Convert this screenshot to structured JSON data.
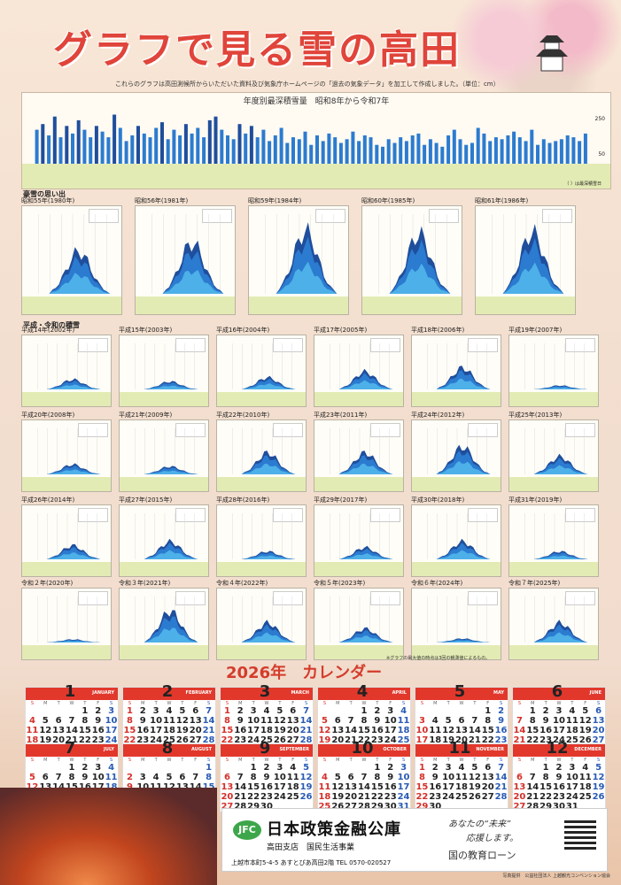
{
  "title": "グラフで見る雪の高田",
  "intro": "これらのグラフは高田測候所からいただいた資料及び気象庁ホームページの「過去の気象データ」を加工して作成しました。（単位：cm）",
  "annual": {
    "title": "年度別最深積雪量　昭和8年から令和7年",
    "tick_250": "250",
    "tick_50": "50",
    "legend": "（ ）は最深積雪日",
    "values": [
      180,
      210,
      150,
      250,
      140,
      200,
      160,
      230,
      180,
      140,
      200,
      170,
      140,
      260,
      190,
      120,
      150,
      200,
      160,
      140,
      190,
      220,
      130,
      180,
      150,
      210,
      160,
      190,
      140,
      230,
      250,
      180,
      150,
      130,
      210,
      160,
      200,
      140,
      180,
      120,
      150,
      190,
      110,
      140,
      130,
      170,
      100,
      150,
      120,
      160,
      140,
      110,
      130,
      170,
      120,
      150,
      140,
      100,
      90,
      130,
      110,
      140,
      120,
      150,
      160,
      100,
      130,
      110,
      90,
      150,
      180,
      130,
      100,
      110,
      190,
      160,
      120,
      140,
      130,
      150,
      170,
      140,
      120,
      180,
      100,
      130,
      110,
      120,
      130,
      150,
      140,
      120,
      160
    ]
  },
  "sections": {
    "heavy": "豪雪の思い出",
    "recent": "平成・令和の積雪"
  },
  "panels": [
    {
      "label": "昭和55年(1980年)",
      "peak": 0.62
    },
    {
      "label": "昭和56年(1981年)",
      "peak": 0.75
    },
    {
      "label": "昭和59年(1984年)",
      "peak": 0.92
    },
    {
      "label": "昭和60年(1985年)",
      "peak": 0.88
    },
    {
      "label": "昭和61年(1986年)",
      "peak": 0.9
    },
    {
      "label": "平成14年(2002年)",
      "peak": 0.25
    },
    {
      "label": "平成15年(2003年)",
      "peak": 0.2
    },
    {
      "label": "平成16年(2004年)",
      "peak": 0.3
    },
    {
      "label": "平成17年(2005年)",
      "peak": 0.45
    },
    {
      "label": "平成18年(2006年)",
      "peak": 0.55
    },
    {
      "label": "平成19年(2007年)",
      "peak": 0.1
    },
    {
      "label": "平成20年(2008年)",
      "peak": 0.25
    },
    {
      "label": "平成21年(2009年)",
      "peak": 0.2
    },
    {
      "label": "平成22年(2010年)",
      "peak": 0.55
    },
    {
      "label": "平成23年(2011年)",
      "peak": 0.55
    },
    {
      "label": "平成24年(2012年)",
      "peak": 0.7
    },
    {
      "label": "平成25年(2013年)",
      "peak": 0.45
    },
    {
      "label": "平成26年(2014年)",
      "peak": 0.35
    },
    {
      "label": "平成27年(2015年)",
      "peak": 0.45
    },
    {
      "label": "平成28年(2016年)",
      "peak": 0.2
    },
    {
      "label": "平成29年(2017年)",
      "peak": 0.3
    },
    {
      "label": "平成30年(2018年)",
      "peak": 0.45
    },
    {
      "label": "平成31年(2019年)",
      "peak": 0.2
    },
    {
      "label": "令和２年(2020年)",
      "peak": 0.08
    },
    {
      "label": "令和３年(2021年)",
      "peak": 0.8
    },
    {
      "label": "令和４年(2022年)",
      "peak": 0.5
    },
    {
      "label": "令和５年(2023年)",
      "peak": 0.35
    },
    {
      "label": "令和６年(2024年)",
      "peak": 0.1
    },
    {
      "label": "令和７年(2025年)",
      "peak": 0.5
    }
  ],
  "calendar": {
    "title": "2026年　カレンダー",
    "note": "※グラフの最大値の時点は3回の観測値によるもの。",
    "weekdays": [
      "S",
      "M",
      "T",
      "W",
      "T",
      "F",
      "S"
    ],
    "months": [
      {
        "num": "1",
        "en": "JANUARY",
        "start": 4,
        "days": 31
      },
      {
        "num": "2",
        "en": "FEBRUARY",
        "start": 0,
        "days": 28
      },
      {
        "num": "3",
        "en": "MARCH",
        "start": 0,
        "days": 31
      },
      {
        "num": "4",
        "en": "APRIL",
        "start": 3,
        "days": 30
      },
      {
        "num": "5",
        "en": "MAY",
        "start": 5,
        "days": 31
      },
      {
        "num": "6",
        "en": "JUNE",
        "start": 1,
        "days": 30
      },
      {
        "num": "7",
        "en": "JULY",
        "start": 3,
        "days": 31
      },
      {
        "num": "8",
        "en": "AUGUST",
        "start": 6,
        "days": 31
      },
      {
        "num": "9",
        "en": "SEPTEMBER",
        "start": 2,
        "days": 30
      },
      {
        "num": "10",
        "en": "OCTOBER",
        "start": 4,
        "days": 31
      },
      {
        "num": "11",
        "en": "NOVEMBER",
        "start": 0,
        "days": 30
      },
      {
        "num": "12",
        "en": "DECEMBER",
        "start": 2,
        "days": 31
      }
    ]
  },
  "footer": {
    "logo": "JFC",
    "corp": "日本政策金融公庫",
    "branch": "高田支店　国民生活事業",
    "address": "上越市本町5-4-5 あすとぴあ高田2階  TEL 0570-020527",
    "slogan1": "あなたの“未来”",
    "slogan2": "応援します。",
    "slogan3": "国の教育ローン"
  },
  "credit": "写真提供　公益社団法人 上越観光コンベンション協会",
  "colors": {
    "dark": "#1f4e9c",
    "mid": "#2b7bd0",
    "light": "#4db0e8",
    "note": "#e3ebb4"
  }
}
